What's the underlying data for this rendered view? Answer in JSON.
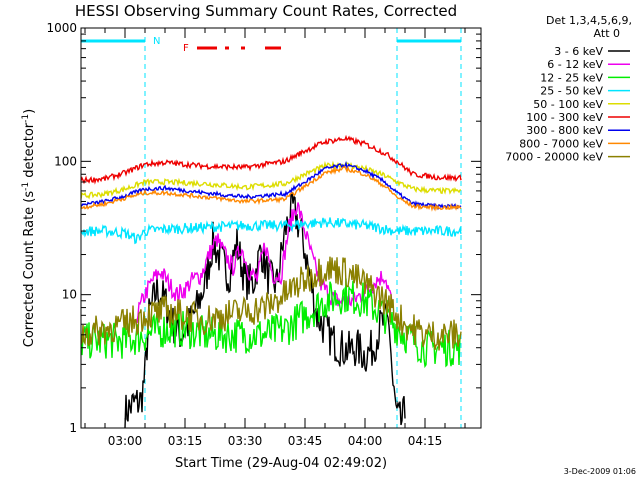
{
  "chart_data": {
    "type": "line",
    "title": "HESSI Observing Summary Count Rates, Corrected",
    "xlabel": "Start Time (29-Aug-04 02:49:02)",
    "ylabel": "Corrected Count Rate (s",
    "ylabel_sup1": "-1",
    "ylabel_mid": " detector",
    "ylabel_sup2": "-1",
    "ylabel_end": ")",
    "footer_date": "3-Dec-2009 01:06",
    "y_scale": "log",
    "ylim": [
      1,
      1000
    ],
    "y_ticks": [
      {
        "value": 1,
        "label": "1"
      },
      {
        "value": 10,
        "label": "10"
      },
      {
        "value": 100,
        "label": "100"
      },
      {
        "value": 1000,
        "label": "1000"
      }
    ],
    "x_range_minutes": [
      "02:49",
      "04:29"
    ],
    "x_ticks": [
      {
        "t": "03:00",
        "label": "03:00"
      },
      {
        "t": "03:15",
        "label": "03:15"
      },
      {
        "t": "03:30",
        "label": "03:30"
      },
      {
        "t": "03:45",
        "label": "03:45"
      },
      {
        "t": "04:00",
        "label": "04:00"
      },
      {
        "t": "04:15",
        "label": "04:15"
      }
    ],
    "legend_header": [
      "Det 1,3,4,5,6,9,",
      "Att 0"
    ],
    "legend_placement": "right",
    "night_band_color": "#00e5ff",
    "night_intervals": [
      [
        "02:49",
        "03:05"
      ],
      [
        "04:08",
        "04:24"
      ]
    ],
    "night_label": "N",
    "flare_label": "F",
    "flare_color": "#ee0000",
    "flare_segments": [
      [
        "03:18",
        "03:23"
      ],
      [
        "03:25",
        "03:26"
      ],
      [
        "03:29",
        "03:30"
      ],
      [
        "03:35",
        "03:39"
      ]
    ],
    "series": [
      {
        "name": "3 - 6 keV",
        "color": "#000000",
        "noise": 0.15,
        "points": [
          [
            "03:00",
            1.3
          ],
          [
            "03:02",
            1.5
          ],
          [
            "03:04",
            1.6
          ],
          [
            "03:05",
            2.5
          ],
          [
            "03:06",
            7
          ],
          [
            "03:08",
            11
          ],
          [
            "03:10",
            9
          ],
          [
            "03:12",
            6
          ],
          [
            "03:14",
            5
          ],
          [
            "03:16",
            6
          ],
          [
            "03:18",
            8
          ],
          [
            "03:20",
            12
          ],
          [
            "03:22",
            25
          ],
          [
            "03:24",
            18
          ],
          [
            "03:26",
            14
          ],
          [
            "03:28",
            24
          ],
          [
            "03:30",
            13
          ],
          [
            "03:32",
            12
          ],
          [
            "03:34",
            22
          ],
          [
            "03:36",
            13
          ],
          [
            "03:38",
            12
          ],
          [
            "03:40",
            30
          ],
          [
            "03:42",
            44
          ],
          [
            "03:44",
            30
          ],
          [
            "03:46",
            15
          ],
          [
            "03:48",
            7
          ],
          [
            "03:50",
            5.5
          ],
          [
            "03:52",
            4.5
          ],
          [
            "03:54",
            4
          ],
          [
            "03:56",
            3.8
          ],
          [
            "03:58",
            4
          ],
          [
            "04:00",
            3.5
          ],
          [
            "04:02",
            4
          ],
          [
            "04:04",
            6
          ],
          [
            "04:06",
            6.5
          ],
          [
            "04:07",
            2
          ],
          [
            "04:08",
            1.2
          ],
          [
            "04:09",
            1.1
          ],
          [
            "04:10",
            1.3
          ]
        ]
      },
      {
        "name": "6 - 12 keV",
        "color": "#ee00ee",
        "noise": 0.07,
        "points": [
          [
            "03:03",
            7
          ],
          [
            "03:05",
            10
          ],
          [
            "03:07",
            13
          ],
          [
            "03:09",
            15
          ],
          [
            "03:11",
            12
          ],
          [
            "03:13",
            10
          ],
          [
            "03:15",
            11
          ],
          [
            "03:17",
            13
          ],
          [
            "03:19",
            14
          ],
          [
            "03:21",
            20
          ],
          [
            "03:23",
            26
          ],
          [
            "03:25",
            20
          ],
          [
            "03:27",
            16
          ],
          [
            "03:29",
            23
          ],
          [
            "03:31",
            15
          ],
          [
            "03:33",
            13
          ],
          [
            "03:35",
            24
          ],
          [
            "03:37",
            14
          ],
          [
            "03:39",
            14
          ],
          [
            "03:41",
            32
          ],
          [
            "03:43",
            48
          ],
          [
            "03:45",
            30
          ],
          [
            "03:47",
            18
          ],
          [
            "03:49",
            12
          ],
          [
            "03:51",
            10
          ],
          [
            "03:53",
            9
          ],
          [
            "03:55",
            9
          ],
          [
            "03:57",
            9
          ],
          [
            "03:59",
            10
          ],
          [
            "04:01",
            11
          ],
          [
            "04:03",
            13
          ],
          [
            "04:05",
            14
          ],
          [
            "04:07",
            8
          ]
        ]
      },
      {
        "name": "12 - 25 keV",
        "color": "#00ee00",
        "noise": 0.14,
        "points": [
          [
            "02:49",
            4.5
          ],
          [
            "02:55",
            4.5
          ],
          [
            "03:00",
            4.5
          ],
          [
            "03:05",
            5
          ],
          [
            "03:10",
            5.5
          ],
          [
            "03:15",
            5.5
          ],
          [
            "03:20",
            5
          ],
          [
            "03:25",
            5
          ],
          [
            "03:30",
            5
          ],
          [
            "03:35",
            5
          ],
          [
            "03:40",
            5.5
          ],
          [
            "03:45",
            7
          ],
          [
            "03:50",
            9
          ],
          [
            "03:55",
            10
          ],
          [
            "04:00",
            9
          ],
          [
            "04:05",
            7
          ],
          [
            "04:10",
            5
          ],
          [
            "04:15",
            4
          ],
          [
            "04:20",
            4
          ],
          [
            "04:24",
            4
          ]
        ]
      },
      {
        "name": "25 - 50 keV",
        "color": "#00e5ff",
        "noise": 0.04,
        "points": [
          [
            "02:49",
            30
          ],
          [
            "02:55",
            30
          ],
          [
            "03:00",
            29
          ],
          [
            "03:03",
            26
          ],
          [
            "03:05",
            30
          ],
          [
            "03:10",
            31
          ],
          [
            "03:20",
            32
          ],
          [
            "03:30",
            33
          ],
          [
            "03:40",
            33
          ],
          [
            "03:50",
            35
          ],
          [
            "04:00",
            33
          ],
          [
            "04:08",
            30
          ],
          [
            "04:15",
            30
          ],
          [
            "04:24",
            30
          ]
        ]
      },
      {
        "name": "50 - 100 keV",
        "color": "#dddd00",
        "noise": 0.02,
        "points": [
          [
            "02:49",
            55
          ],
          [
            "02:55",
            57
          ],
          [
            "03:00",
            62
          ],
          [
            "03:05",
            70
          ],
          [
            "03:10",
            70
          ],
          [
            "03:20",
            68
          ],
          [
            "03:30",
            64
          ],
          [
            "03:40",
            68
          ],
          [
            "03:45",
            80
          ],
          [
            "03:50",
            92
          ],
          [
            "03:55",
            95
          ],
          [
            "04:00",
            88
          ],
          [
            "04:05",
            78
          ],
          [
            "04:08",
            70
          ],
          [
            "04:12",
            62
          ],
          [
            "04:18",
            60
          ],
          [
            "04:24",
            60
          ]
        ]
      },
      {
        "name": "100 - 300 keV",
        "color": "#ee0000",
        "noise": 0.02,
        "points": [
          [
            "02:49",
            72
          ],
          [
            "02:55",
            74
          ],
          [
            "03:00",
            82
          ],
          [
            "03:05",
            95
          ],
          [
            "03:10",
            98
          ],
          [
            "03:20",
            92
          ],
          [
            "03:30",
            90
          ],
          [
            "03:40",
            100
          ],
          [
            "03:45",
            120
          ],
          [
            "03:50",
            140
          ],
          [
            "03:55",
            148
          ],
          [
            "04:00",
            135
          ],
          [
            "04:05",
            115
          ],
          [
            "04:08",
            100
          ],
          [
            "04:12",
            80
          ],
          [
            "04:18",
            76
          ],
          [
            "04:24",
            75
          ]
        ]
      },
      {
        "name": "300 - 800 keV",
        "color": "#0000ee",
        "noise": 0.015,
        "points": [
          [
            "02:49",
            47
          ],
          [
            "02:55",
            50
          ],
          [
            "03:00",
            55
          ],
          [
            "03:05",
            62
          ],
          [
            "03:10",
            63
          ],
          [
            "03:20",
            58
          ],
          [
            "03:30",
            54
          ],
          [
            "03:40",
            57
          ],
          [
            "03:45",
            70
          ],
          [
            "03:50",
            88
          ],
          [
            "03:55",
            94
          ],
          [
            "04:00",
            85
          ],
          [
            "04:05",
            70
          ],
          [
            "04:08",
            58
          ],
          [
            "04:12",
            48
          ],
          [
            "04:18",
            46
          ],
          [
            "04:24",
            46
          ]
        ]
      },
      {
        "name": "800 - 7000 keV",
        "color": "#ff8800",
        "noise": 0.015,
        "points": [
          [
            "02:49",
            45
          ],
          [
            "02:55",
            48
          ],
          [
            "03:00",
            53
          ],
          [
            "03:05",
            58
          ],
          [
            "03:10",
            58
          ],
          [
            "03:20",
            54
          ],
          [
            "03:30",
            50
          ],
          [
            "03:40",
            52
          ],
          [
            "03:45",
            65
          ],
          [
            "03:50",
            82
          ],
          [
            "03:55",
            88
          ],
          [
            "04:00",
            80
          ],
          [
            "04:05",
            65
          ],
          [
            "04:08",
            54
          ],
          [
            "04:12",
            46
          ],
          [
            "04:18",
            45
          ],
          [
            "04:24",
            45
          ]
        ]
      },
      {
        "name": "7000 - 20000 keV",
        "color": "#8b8000",
        "noise": 0.12,
        "points": [
          [
            "02:49",
            5
          ],
          [
            "02:55",
            5.5
          ],
          [
            "03:00",
            6
          ],
          [
            "03:05",
            7
          ],
          [
            "03:10",
            7.5
          ],
          [
            "03:15",
            7
          ],
          [
            "03:20",
            6.5
          ],
          [
            "03:25",
            7
          ],
          [
            "03:30",
            7.5
          ],
          [
            "03:35",
            8
          ],
          [
            "03:40",
            10
          ],
          [
            "03:45",
            13
          ],
          [
            "03:50",
            16
          ],
          [
            "03:55",
            15
          ],
          [
            "04:00",
            12
          ],
          [
            "04:05",
            9
          ],
          [
            "04:10",
            6
          ],
          [
            "04:15",
            5
          ],
          [
            "04:20",
            5
          ],
          [
            "04:24",
            5
          ]
        ]
      }
    ]
  }
}
